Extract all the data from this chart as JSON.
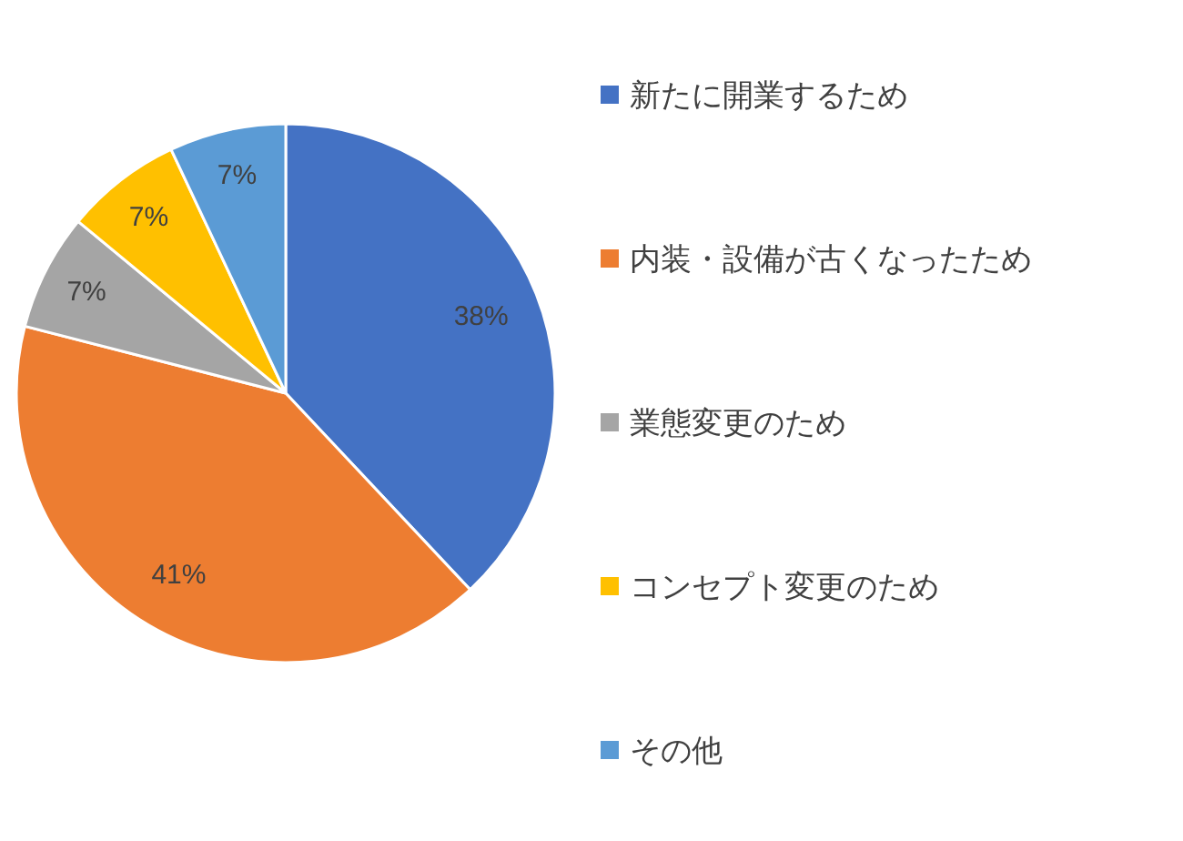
{
  "chart_data": {
    "type": "pie",
    "categories": [
      "新たに開業するため",
      "内装・設備が古くなったため",
      "業態変更のため",
      "コンセプト変更のため",
      "その他"
    ],
    "values": [
      38,
      41,
      7,
      7,
      7
    ],
    "colors": [
      "#4472c4",
      "#ed7d31",
      "#a5a5a5",
      "#ffc000",
      "#5b9bd5"
    ],
    "value_labels": [
      "38%",
      "41%",
      "7%",
      "7%",
      "7%"
    ],
    "legend": "right"
  }
}
